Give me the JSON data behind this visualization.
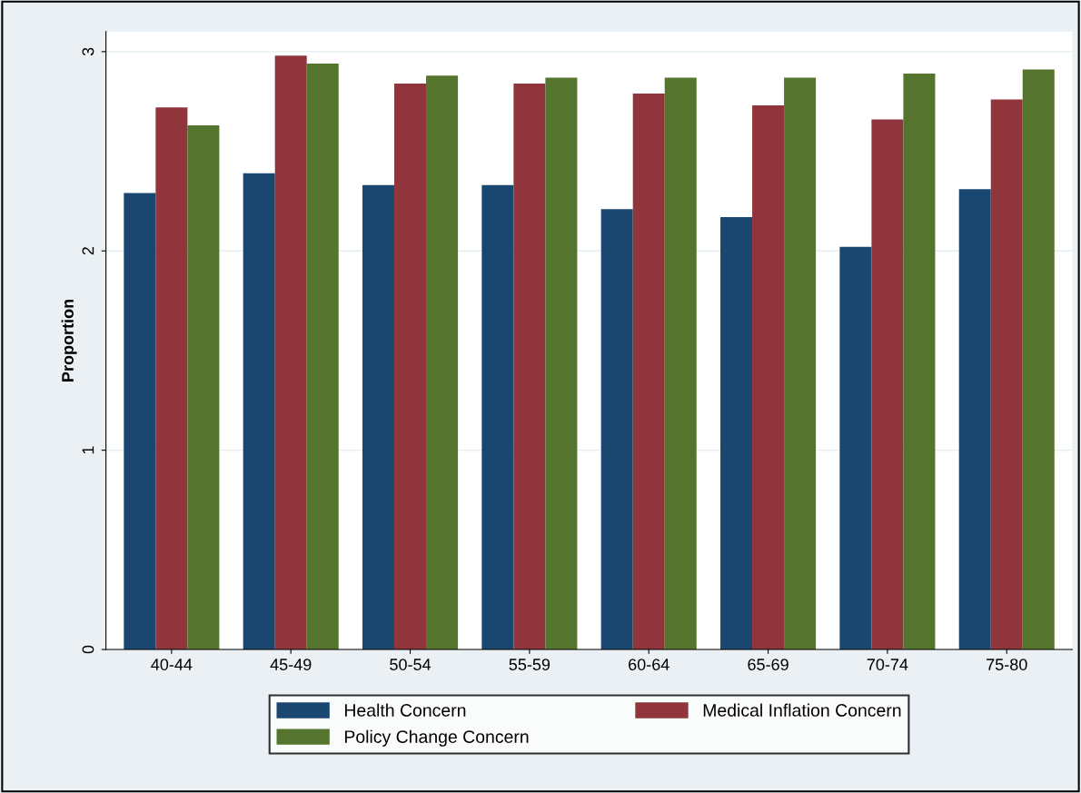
{
  "chart_data": {
    "type": "bar",
    "ylabel": "Proportion",
    "categories": [
      "40-44",
      "45-49",
      "50-54",
      "55-59",
      "60-64",
      "65-69",
      "70-74",
      "75-80"
    ],
    "series": [
      {
        "name": "Health Concern",
        "color": "#1a476f",
        "values": [
          2.29,
          2.39,
          2.33,
          2.33,
          2.21,
          2.17,
          2.02,
          2.31
        ]
      },
      {
        "name": "Medical Inflation Concern",
        "color": "#90353b",
        "values": [
          2.72,
          2.98,
          2.84,
          2.84,
          2.79,
          2.73,
          2.66,
          2.76
        ]
      },
      {
        "name": "Policy Change Concern",
        "color": "#55752f",
        "values": [
          2.63,
          2.94,
          2.88,
          2.87,
          2.87,
          2.87,
          2.89,
          2.91
        ]
      }
    ],
    "ylim": [
      0,
      3.1
    ],
    "yticks": [
      0,
      1,
      2,
      3
    ],
    "grid": "y",
    "legend": "bottom"
  }
}
